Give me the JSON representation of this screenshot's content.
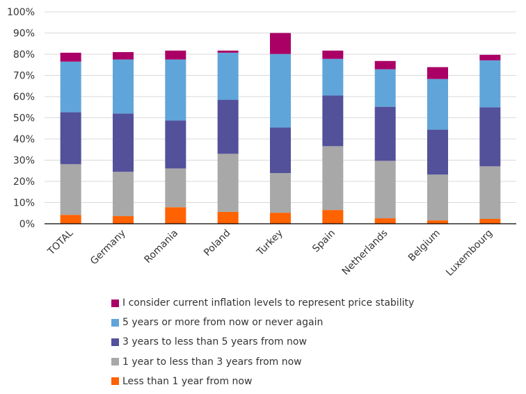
{
  "chart_data": {
    "type": "bar",
    "stacked": true,
    "categories": [
      "TOTAL",
      "Germany",
      "Romania",
      "Poland",
      "Turkey",
      "Spain",
      "Netherlands",
      "Belgium",
      "Luxembourg"
    ],
    "series": [
      {
        "name": "Less than 1 year from now",
        "color": "#FF6200",
        "values": [
          4.2,
          3.6,
          7.8,
          5.6,
          5.2,
          6.5,
          2.6,
          1.6,
          2.3
        ]
      },
      {
        "name": "1 year to less than 3 years from now",
        "color": "#A8A8A8",
        "values": [
          23.9,
          20.9,
          18.3,
          27.4,
          18.7,
          30.1,
          27.1,
          21.6,
          24.8
        ]
      },
      {
        "name": "3 years to less than 5 years from now",
        "color": "#53519A",
        "values": [
          24.5,
          27.5,
          22.6,
          25.5,
          21.5,
          23.9,
          25.5,
          21.2,
          27.8
        ]
      },
      {
        "name": "5 years or more from now or never again",
        "color": "#60A5DA",
        "values": [
          23.9,
          25.5,
          28.8,
          22.2,
          34.7,
          17.3,
          17.7,
          23.9,
          22.2
        ]
      },
      {
        "name": "I consider current inflation levels to represent price stability",
        "color": "#AA0066",
        "values": [
          4.2,
          3.5,
          4.2,
          1.0,
          9.9,
          3.9,
          3.9,
          5.6,
          2.6
        ]
      }
    ],
    "ylim": [
      0,
      100
    ],
    "yticks": [
      "0%",
      "10%",
      "20%",
      "30%",
      "40%",
      "50%",
      "60%",
      "70%",
      "80%",
      "90%",
      "100%"
    ],
    "grid": true,
    "legend_position": "bottom",
    "legend_order": [
      4,
      3,
      2,
      1,
      0
    ]
  }
}
